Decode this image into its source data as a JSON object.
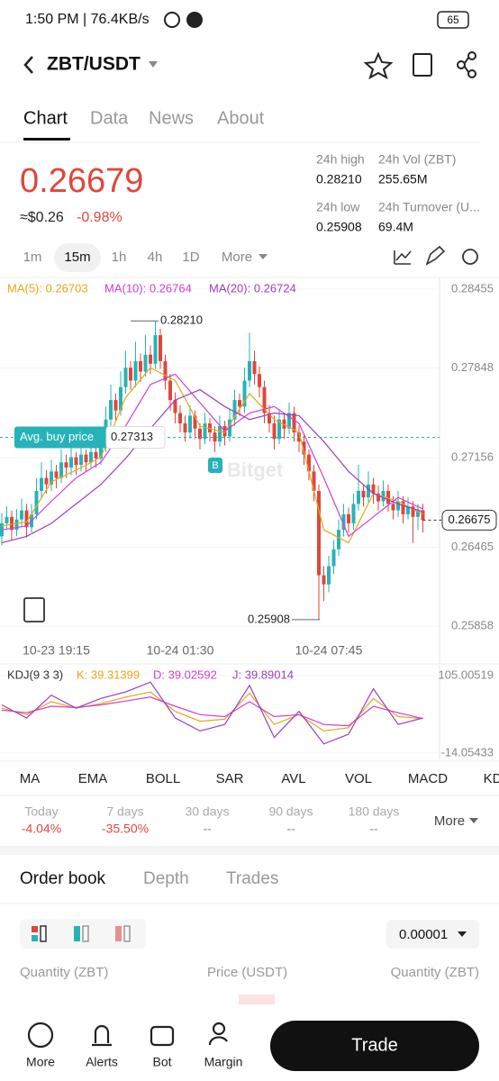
{
  "status_bar": {
    "time": "1:50 PM | 76.4KB/s",
    "battery": "65"
  },
  "header": {
    "pair": "ZBT/USDT"
  },
  "tabs": [
    "Chart",
    "Data",
    "News",
    "About"
  ],
  "ticker": {
    "price": "0.26679",
    "fiat": "≈$0.26",
    "change": "-0.98%"
  },
  "stats": [
    {
      "label": "24h high",
      "value": "0.28210"
    },
    {
      "label": "24h Vol (ZBT)",
      "value": "255.65M"
    },
    {
      "label": "24h low",
      "value": "0.25908"
    },
    {
      "label": "24h Turnover (U...",
      "value": "69.4M"
    }
  ],
  "intervals": [
    "1m",
    "15m",
    "1h",
    "4h",
    "1D",
    "More"
  ],
  "chart_data": [
    {
      "type": "candlestick",
      "up_color": "#26b3b8",
      "down_color": "#e0463c",
      "ylim": [
        0.25789,
        0.28531
      ],
      "yticks": [
        0.28455,
        0.27848,
        0.27156,
        0.26465,
        0.25858
      ],
      "categories": [
        null,
        null,
        null,
        null,
        null,
        null,
        null,
        null,
        null,
        null,
        null,
        "10-23 19:15",
        null,
        null,
        null,
        null,
        null,
        null,
        null,
        null,
        null,
        null,
        null,
        null,
        null,
        null,
        null,
        null,
        null,
        null,
        null,
        null,
        null,
        null,
        null,
        null,
        "10-24 01:30",
        null,
        null,
        null,
        null,
        null,
        null,
        null,
        null,
        null,
        null,
        null,
        null,
        null,
        null,
        null,
        null,
        null,
        null,
        null,
        null,
        null,
        null,
        null,
        null,
        null,
        null,
        null,
        null,
        null,
        "10-24 07:45",
        null,
        null,
        null,
        null,
        null,
        null,
        null,
        null,
        null,
        null,
        null,
        null,
        null,
        null,
        null,
        null,
        null,
        null,
        null
      ],
      "candles": [
        [
          0.2655,
          0.2673,
          0.2648,
          0.2665
        ],
        [
          0.2665,
          0.2678,
          0.266,
          0.267
        ],
        [
          0.267,
          0.2675,
          0.2652,
          0.266
        ],
        [
          0.266,
          0.2676,
          0.2655,
          0.2668
        ],
        [
          0.2668,
          0.2684,
          0.2662,
          0.2675
        ],
        [
          0.2675,
          0.268,
          0.2654,
          0.2662
        ],
        [
          0.2662,
          0.268,
          0.2658,
          0.2672
        ],
        [
          0.2672,
          0.27,
          0.2668,
          0.269
        ],
        [
          0.269,
          0.2712,
          0.2684,
          0.27
        ],
        [
          0.27,
          0.2706,
          0.2688,
          0.2695
        ],
        [
          0.2695,
          0.2714,
          0.269,
          0.2705
        ],
        [
          0.2705,
          0.271,
          0.2692,
          0.27
        ],
        [
          0.27,
          0.2722,
          0.2696,
          0.2712
        ],
        [
          0.2712,
          0.2718,
          0.27,
          0.2708
        ],
        [
          0.2708,
          0.2735,
          0.2702,
          0.2716
        ],
        [
          0.2716,
          0.272,
          0.2702,
          0.271
        ],
        [
          0.271,
          0.2728,
          0.2705,
          0.2718
        ],
        [
          0.2718,
          0.2722,
          0.2705,
          0.2712
        ],
        [
          0.2712,
          0.273,
          0.2708,
          0.272
        ],
        [
          0.272,
          0.2724,
          0.2708,
          0.2715
        ],
        [
          0.2715,
          0.2735,
          0.271,
          0.2725
        ],
        [
          0.2725,
          0.2755,
          0.272,
          0.2745
        ],
        [
          0.2745,
          0.2772,
          0.274,
          0.276
        ],
        [
          0.276,
          0.2765,
          0.2744,
          0.2752
        ],
        [
          0.2752,
          0.2782,
          0.2748,
          0.277
        ],
        [
          0.277,
          0.2798,
          0.2765,
          0.2785
        ],
        [
          0.2785,
          0.279,
          0.2768,
          0.2775
        ],
        [
          0.2775,
          0.2805,
          0.277,
          0.279
        ],
        [
          0.279,
          0.2796,
          0.2774,
          0.2782
        ],
        [
          0.2782,
          0.281,
          0.2778,
          0.2795
        ],
        [
          0.2795,
          0.2802,
          0.278,
          0.2788
        ],
        [
          0.2788,
          0.2821,
          0.2784,
          0.281
        ],
        [
          0.281,
          0.2815,
          0.2784,
          0.279
        ],
        [
          0.279,
          0.2795,
          0.2768,
          0.2775
        ],
        [
          0.2775,
          0.278,
          0.2752,
          0.276
        ],
        [
          0.276,
          0.2766,
          0.2742,
          0.275
        ],
        [
          0.275,
          0.2756,
          0.2735,
          0.2742
        ],
        [
          0.2742,
          0.2748,
          0.2728,
          0.2735
        ],
        [
          0.2735,
          0.2756,
          0.273,
          0.2748
        ],
        [
          0.2748,
          0.2752,
          0.273,
          0.2738
        ],
        [
          0.2738,
          0.2742,
          0.2722,
          0.273
        ],
        [
          0.273,
          0.275,
          0.2726,
          0.2742
        ],
        [
          0.2742,
          0.2746,
          0.2728,
          0.2735
        ],
        [
          0.2735,
          0.274,
          0.272,
          0.2728
        ],
        [
          0.2728,
          0.2748,
          0.2724,
          0.274
        ],
        [
          0.274,
          0.2744,
          0.2725,
          0.2732
        ],
        [
          0.2732,
          0.2753,
          0.2728,
          0.2745
        ],
        [
          0.2745,
          0.2768,
          0.274,
          0.276
        ],
        [
          0.276,
          0.2765,
          0.2748,
          0.2755
        ],
        [
          0.2755,
          0.2785,
          0.275,
          0.2775
        ],
        [
          0.2775,
          0.2812,
          0.277,
          0.279
        ],
        [
          0.279,
          0.2798,
          0.2772,
          0.278
        ],
        [
          0.278,
          0.2786,
          0.2762,
          0.277
        ],
        [
          0.277,
          0.2775,
          0.2742,
          0.275
        ],
        [
          0.275,
          0.2756,
          0.2735,
          0.2742
        ],
        [
          0.2742,
          0.2748,
          0.2722,
          0.273
        ],
        [
          0.273,
          0.2753,
          0.2726,
          0.2745
        ],
        [
          0.2745,
          0.275,
          0.273,
          0.2738
        ],
        [
          0.2738,
          0.2758,
          0.2734,
          0.275
        ],
        [
          0.275,
          0.2755,
          0.2728,
          0.2735
        ],
        [
          0.2735,
          0.274,
          0.272,
          0.2728
        ],
        [
          0.2728,
          0.2733,
          0.271,
          0.2718
        ],
        [
          0.2718,
          0.2722,
          0.2698,
          0.2705
        ],
        [
          0.2705,
          0.271,
          0.2682,
          0.269
        ],
        [
          0.269,
          0.2695,
          0.25908,
          0.2625
        ],
        [
          0.2625,
          0.2632,
          0.2605,
          0.2618
        ],
        [
          0.2618,
          0.264,
          0.2612,
          0.2632
        ],
        [
          0.2632,
          0.2652,
          0.2626,
          0.2645
        ],
        [
          0.2645,
          0.2668,
          0.264,
          0.266
        ],
        [
          0.266,
          0.268,
          0.2655,
          0.2672
        ],
        [
          0.2672,
          0.2677,
          0.2658,
          0.2665
        ],
        [
          0.2665,
          0.2688,
          0.266,
          0.268
        ],
        [
          0.268,
          0.271,
          0.2675,
          0.269
        ],
        [
          0.269,
          0.2695,
          0.2678,
          0.2685
        ],
        [
          0.2685,
          0.2705,
          0.268,
          0.2695
        ],
        [
          0.2695,
          0.27,
          0.268,
          0.2688
        ],
        [
          0.2688,
          0.2694,
          0.2675,
          0.2682
        ],
        [
          0.2682,
          0.2698,
          0.2678,
          0.269
        ],
        [
          0.269,
          0.2695,
          0.2674,
          0.268
        ],
        [
          0.268,
          0.2686,
          0.2668,
          0.2675
        ],
        [
          0.2675,
          0.269,
          0.267,
          0.2682
        ],
        [
          0.2682,
          0.2686,
          0.2665,
          0.2672
        ],
        [
          0.2672,
          0.2685,
          0.2668,
          0.2678
        ],
        [
          0.2678,
          0.2682,
          0.265,
          0.267
        ],
        [
          0.267,
          0.268,
          0.266,
          0.2675
        ],
        [
          0.2675,
          0.268,
          0.2658,
          0.26675
        ]
      ],
      "series": [
        {
          "name": "MA(5): 0.26703",
          "color": "#e6a817",
          "x": [
            0,
            5,
            10,
            15,
            20,
            25,
            30,
            35,
            40,
            45,
            50,
            55,
            60,
            65,
            70,
            75,
            80,
            85
          ],
          "values": [
            0.2663,
            0.2666,
            0.2697,
            0.2706,
            0.2716,
            0.2762,
            0.2785,
            0.2775,
            0.274,
            0.2735,
            0.2765,
            0.2745,
            0.2735,
            0.266,
            0.265,
            0.2688,
            0.2682,
            0.2672
          ]
        },
        {
          "name": "MA(10): 0.26764",
          "color": "#d040d0",
          "x": [
            0,
            5,
            10,
            15,
            20,
            25,
            30,
            35,
            40,
            45,
            50,
            55,
            60,
            65,
            70,
            75,
            80,
            85
          ],
          "values": [
            0.266,
            0.2663,
            0.2682,
            0.27,
            0.2712,
            0.274,
            0.2772,
            0.278,
            0.2758,
            0.2736,
            0.275,
            0.2755,
            0.2742,
            0.27,
            0.2655,
            0.267,
            0.2685,
            0.2676
          ]
        },
        {
          "name": "MA(20): 0.26724",
          "color": "#9c3fbf",
          "x": [
            0,
            5,
            10,
            15,
            20,
            25,
            30,
            35,
            40,
            45,
            50,
            55,
            60,
            65,
            70,
            75,
            80,
            85
          ],
          "values": [
            0.265,
            0.2655,
            0.2665,
            0.268,
            0.2695,
            0.2715,
            0.2738,
            0.276,
            0.2768,
            0.2755,
            0.2745,
            0.275,
            0.2748,
            0.2728,
            0.2705,
            0.2688,
            0.268,
            0.2674
          ]
        }
      ],
      "high_marker": {
        "value": 0.2821,
        "label": "0.28210"
      },
      "low_marker": {
        "value": 0.25908,
        "label": "0.25908"
      },
      "avg_buy_price": {
        "label": "Avg. buy price",
        "value": 0.27313
      },
      "last_price": 0.26675,
      "buy_marker": "B",
      "watermark": "Bitget"
    },
    {
      "type": "line",
      "title": "KDJ(9 3 3)",
      "ylim": [
        -14.05433,
        105.00519
      ],
      "yticks": [
        105.00519,
        -14.05433
      ],
      "series": [
        {
          "name": "K: 39.31399",
          "color": "#e6a817",
          "x": [
            0,
            5,
            10,
            15,
            20,
            25,
            30,
            35,
            40,
            45,
            50,
            55,
            60,
            65,
            70,
            75,
            80,
            85
          ],
          "values": [
            55,
            45,
            65,
            55,
            62,
            72,
            80,
            50,
            35,
            38,
            78,
            30,
            45,
            20,
            25,
            70,
            42,
            39
          ]
        },
        {
          "name": "D: 39.02592",
          "color": "#d040d0",
          "x": [
            0,
            5,
            10,
            15,
            20,
            25,
            30,
            35,
            40,
            45,
            50,
            55,
            60,
            65,
            70,
            75,
            80,
            85
          ],
          "values": [
            52,
            48,
            58,
            56,
            60,
            66,
            72,
            58,
            45,
            42,
            65,
            42,
            45,
            30,
            28,
            58,
            48,
            39
          ]
        },
        {
          "name": "J: 39.89014",
          "color": "#9c3fbf",
          "x": [
            0,
            5,
            10,
            15,
            20,
            25,
            30,
            35,
            40,
            45,
            50,
            55,
            60,
            65,
            70,
            75,
            80,
            85
          ],
          "values": [
            60,
            40,
            75,
            55,
            70,
            80,
            95,
            40,
            20,
            30,
            90,
            10,
            50,
            0,
            15,
            85,
            30,
            40
          ]
        }
      ]
    }
  ],
  "indicators": [
    "MA",
    "EMA",
    "BOLL",
    "SAR",
    "AVL",
    "VOL",
    "MACD",
    "KD"
  ],
  "periods": [
    {
      "label": "Today",
      "value": "-4.04%"
    },
    {
      "label": "7 days",
      "value": "-35.50%"
    },
    {
      "label": "30 days",
      "value": "--"
    },
    {
      "label": "90 days",
      "value": "--"
    },
    {
      "label": "180 days",
      "value": "--"
    }
  ],
  "periods_more": "More",
  "order_tabs": [
    "Order book",
    "Depth",
    "Trades"
  ],
  "precision": "0.00001",
  "columns": [
    "Quantity (ZBT)",
    "Price (USDT)",
    "Quantity (ZBT)"
  ],
  "nav": [
    "More",
    "Alerts",
    "Bot",
    "Margin"
  ],
  "trade": "Trade"
}
